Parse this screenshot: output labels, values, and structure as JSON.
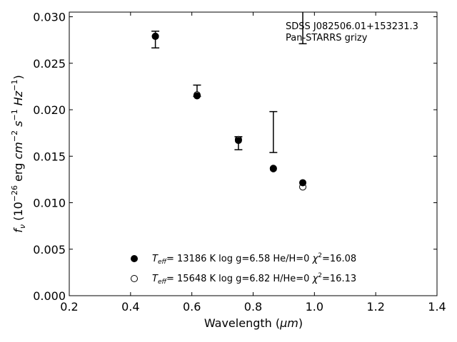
{
  "chart_data": {
    "type": "scatter",
    "title": "",
    "annotations": [
      "SDSS J082506.01+153231.3",
      "Pan-STARRS grizy"
    ],
    "xlabel": {
      "text": "Wavelength (",
      "unit": "μm",
      "suffix": ")"
    },
    "ylabel": {
      "lead": "f",
      "sub": "ν",
      "paren_open": " (10",
      "exp1": "−26",
      "erg": " erg ",
      "cm": "cm",
      "exp2": "−2",
      "s": " s",
      "exp3": "−1",
      "hz": " Hz",
      "exp4": "−1",
      "close": ")"
    },
    "xlim": [
      0.2,
      1.4
    ],
    "ylim": [
      0.0,
      0.0305
    ],
    "xticks": [
      "0.2",
      "0.4",
      "0.6",
      "0.8",
      "1.0",
      "1.2",
      "1.4"
    ],
    "yticks": [
      "0.000",
      "0.005",
      "0.010",
      "0.015",
      "0.020",
      "0.025",
      "0.030"
    ],
    "grid": false,
    "legend_position": "bottom-center",
    "observed": {
      "x": [
        0.481,
        0.617,
        0.752,
        0.866,
        0.962
      ],
      "y": [
        0.02755,
        0.02205,
        0.0164,
        0.0176,
        0.0289
      ],
      "yerr": [
        0.0009,
        0.0006,
        0.0007,
        0.0022,
        0.0018
      ]
    },
    "series": [
      {
        "marker": "filled",
        "legend": {
          "T": "T",
          "sub": "eff",
          "rest": "= 13186 K  log g=6.58  He/H=0  ",
          "chi": "χ",
          "sup": "2",
          "val": "=16.08"
        },
        "x": [
          0.481,
          0.617,
          0.752,
          0.866,
          0.962
        ],
        "y": [
          0.0279,
          0.0215,
          0.0167,
          0.01365,
          0.01215
        ]
      },
      {
        "marker": "open",
        "legend": {
          "T": "T",
          "sub": "eff",
          "rest": "= 15648 K  log g=6.82  H/He=0  ",
          "chi": "χ",
          "sup": "2",
          "val": "=16.13"
        },
        "x": [
          0.481,
          0.617,
          0.752,
          0.866,
          0.962
        ],
        "y": [
          0.0279,
          0.0216,
          0.0168,
          0.0137,
          0.0117
        ]
      }
    ]
  }
}
